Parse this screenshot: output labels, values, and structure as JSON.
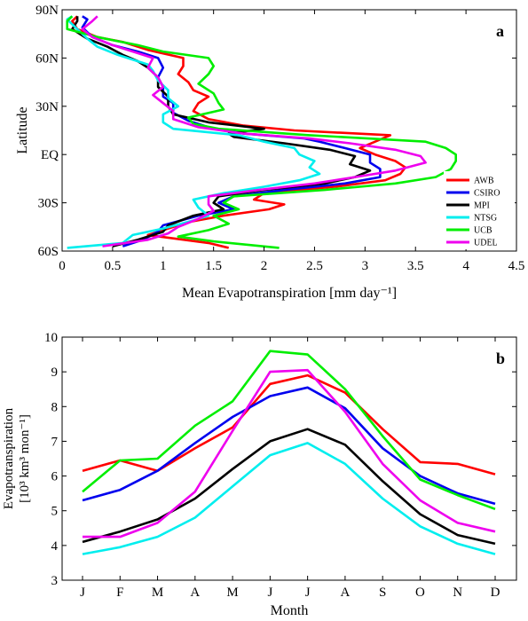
{
  "chart_data": [
    {
      "type": "line",
      "panel_label": "a",
      "xlabel": "Mean Evapotranspiration [mm day⁻¹]",
      "ylabel": "Latitude",
      "xlim": [
        0,
        4.5
      ],
      "ylim": [
        -60,
        90
      ],
      "xticks": [
        0,
        0.5,
        1,
        1.5,
        2,
        2.5,
        3,
        3.5,
        4,
        4.5
      ],
      "xtick_labels": [
        "0",
        "0.5",
        "1",
        "1.5",
        "2",
        "2.5",
        "3",
        "3.5",
        "4",
        "4.5"
      ],
      "yticks": [
        -60,
        -30,
        0,
        30,
        60,
        90
      ],
      "ytick_labels": [
        "60S",
        "30S",
        "EQ",
        "30N",
        "60N",
        "90N"
      ],
      "legend_position": "right",
      "series": [
        {
          "name": "AWB",
          "color": "#ff0000",
          "points": [
            [
              1.65,
              -58
            ],
            [
              1.45,
              -55
            ],
            [
              0.85,
              -50
            ],
            [
              1.05,
              -46
            ],
            [
              1.25,
              -42
            ],
            [
              1.6,
              -38
            ],
            [
              2.05,
              -34
            ],
            [
              2.2,
              -31
            ],
            [
              1.9,
              -28
            ],
            [
              2.0,
              -24
            ],
            [
              2.7,
              -20
            ],
            [
              3.2,
              -16
            ],
            [
              3.35,
              -12
            ],
            [
              3.4,
              -8
            ],
            [
              3.3,
              -4
            ],
            [
              3.1,
              0
            ],
            [
              2.95,
              4
            ],
            [
              3.1,
              8
            ],
            [
              3.25,
              12
            ],
            [
              2.3,
              15
            ],
            [
              1.8,
              18
            ],
            [
              1.45,
              22
            ],
            [
              1.3,
              27
            ],
            [
              1.35,
              32
            ],
            [
              1.45,
              36
            ],
            [
              1.3,
              40
            ],
            [
              1.25,
              45
            ],
            [
              1.15,
              50
            ],
            [
              1.2,
              55
            ],
            [
              1.2,
              60
            ],
            [
              0.85,
              65
            ],
            [
              0.6,
              70
            ],
            [
              0.35,
              73
            ],
            [
              0.15,
              78
            ],
            [
              0.1,
              83
            ],
            [
              0.15,
              86
            ]
          ]
        },
        {
          "name": "CSIRO",
          "color": "#0000ee",
          "points": [
            [
              0.6,
              -57
            ],
            [
              0.8,
              -53
            ],
            [
              0.95,
              -48
            ],
            [
              1.0,
              -44
            ],
            [
              1.35,
              -38
            ],
            [
              1.7,
              -34
            ],
            [
              1.55,
              -30
            ],
            [
              1.7,
              -26
            ],
            [
              2.2,
              -22
            ],
            [
              2.8,
              -18
            ],
            [
              3.15,
              -14
            ],
            [
              3.15,
              -9
            ],
            [
              3.05,
              -5
            ],
            [
              3.05,
              0
            ],
            [
              2.8,
              4
            ],
            [
              2.55,
              8
            ],
            [
              2.4,
              10
            ],
            [
              1.8,
              13
            ],
            [
              1.45,
              17
            ],
            [
              1.25,
              21
            ],
            [
              1.1,
              26
            ],
            [
              1.1,
              32
            ],
            [
              1.0,
              36
            ],
            [
              1.0,
              42
            ],
            [
              0.95,
              48
            ],
            [
              1.0,
              54
            ],
            [
              0.95,
              60
            ],
            [
              0.75,
              64
            ],
            [
              0.5,
              68
            ],
            [
              0.3,
              73
            ],
            [
              0.2,
              79
            ],
            [
              0.25,
              84
            ],
            [
              0.2,
              86
            ]
          ]
        },
        {
          "name": "MPI",
          "color": "#000000",
          "points": [
            [
              0.5,
              -57
            ],
            [
              0.75,
              -53
            ],
            [
              1.0,
              -48
            ],
            [
              1.05,
              -44
            ],
            [
              1.3,
              -38
            ],
            [
              1.6,
              -34
            ],
            [
              1.5,
              -30
            ],
            [
              1.55,
              -26
            ],
            [
              2.0,
              -22
            ],
            [
              2.6,
              -18
            ],
            [
              2.9,
              -14
            ],
            [
              3.05,
              -10
            ],
            [
              2.85,
              -6
            ],
            [
              2.9,
              -1
            ],
            [
              2.65,
              3
            ],
            [
              2.2,
              7
            ],
            [
              1.7,
              11
            ],
            [
              1.65,
              13
            ],
            [
              2.0,
              16
            ],
            [
              1.45,
              20
            ],
            [
              1.1,
              25
            ],
            [
              1.05,
              30
            ],
            [
              1.05,
              36
            ],
            [
              0.95,
              42
            ],
            [
              0.95,
              48
            ],
            [
              0.85,
              54
            ],
            [
              0.75,
              58
            ],
            [
              0.6,
              62
            ],
            [
              0.45,
              67
            ],
            [
              0.25,
              72
            ],
            [
              0.1,
              78
            ],
            [
              0.15,
              83
            ],
            [
              0.15,
              86
            ]
          ]
        },
        {
          "name": "NTSG",
          "color": "#00eeee",
          "points": [
            [
              0.05,
              -58
            ],
            [
              0.6,
              -55
            ],
            [
              0.7,
              -50
            ],
            [
              1.0,
              -46
            ],
            [
              1.3,
              -41
            ],
            [
              1.45,
              -38
            ],
            [
              1.35,
              -33
            ],
            [
              1.3,
              -28
            ],
            [
              1.6,
              -24
            ],
            [
              2.0,
              -20
            ],
            [
              2.35,
              -16
            ],
            [
              2.55,
              -12
            ],
            [
              2.45,
              -8
            ],
            [
              2.5,
              -4
            ],
            [
              2.35,
              0
            ],
            [
              2.3,
              4
            ],
            [
              2.0,
              8
            ],
            [
              1.75,
              12
            ],
            [
              1.1,
              16
            ],
            [
              1.0,
              20
            ],
            [
              1.0,
              25
            ],
            [
              1.15,
              30
            ],
            [
              1.05,
              35
            ],
            [
              1.05,
              40
            ],
            [
              0.95,
              46
            ],
            [
              0.9,
              52
            ],
            [
              0.85,
              56
            ],
            [
              0.55,
              62
            ],
            [
              0.35,
              67
            ],
            [
              0.25,
              72
            ],
            [
              0.15,
              78
            ],
            [
              0.05,
              84
            ],
            [
              0.1,
              86
            ]
          ]
        },
        {
          "name": "UCB",
          "color": "#00ee00",
          "points": [
            [
              2.15,
              -58
            ],
            [
              1.5,
              -54
            ],
            [
              1.15,
              -51
            ],
            [
              1.45,
              -47
            ],
            [
              1.65,
              -43
            ],
            [
              1.5,
              -38
            ],
            [
              1.75,
              -34
            ],
            [
              1.6,
              -30
            ],
            [
              1.7,
              -26
            ],
            [
              2.6,
              -22
            ],
            [
              3.3,
              -18
            ],
            [
              3.7,
              -14
            ],
            [
              3.85,
              -9
            ],
            [
              3.9,
              -4
            ],
            [
              3.9,
              0
            ],
            [
              3.8,
              4
            ],
            [
              3.6,
              8
            ],
            [
              2.45,
              12
            ],
            [
              1.55,
              16
            ],
            [
              1.3,
              19
            ],
            [
              1.25,
              23
            ],
            [
              1.6,
              28
            ],
            [
              1.55,
              32
            ],
            [
              1.5,
              38
            ],
            [
              1.35,
              44
            ],
            [
              1.45,
              50
            ],
            [
              1.5,
              55
            ],
            [
              1.45,
              60
            ],
            [
              1.0,
              64
            ],
            [
              0.75,
              68
            ],
            [
              0.35,
              73
            ],
            [
              0.05,
              78
            ],
            [
              0.05,
              83
            ],
            [
              0.1,
              86
            ]
          ]
        },
        {
          "name": "UDEL",
          "color": "#ee00ee",
          "points": [
            [
              0.4,
              -57
            ],
            [
              0.85,
              -53
            ],
            [
              1.05,
              -49
            ],
            [
              1.15,
              -45
            ],
            [
              1.35,
              -40
            ],
            [
              1.5,
              -35
            ],
            [
              1.45,
              -31
            ],
            [
              1.45,
              -26
            ],
            [
              1.95,
              -22
            ],
            [
              2.5,
              -18
            ],
            [
              2.9,
              -14
            ],
            [
              3.3,
              -10
            ],
            [
              3.6,
              -5
            ],
            [
              3.55,
              -1
            ],
            [
              3.3,
              3
            ],
            [
              2.85,
              7
            ],
            [
              2.45,
              10
            ],
            [
              1.8,
              13
            ],
            [
              1.35,
              17
            ],
            [
              1.1,
              22
            ],
            [
              1.1,
              27
            ],
            [
              1.0,
              32
            ],
            [
              0.9,
              37
            ],
            [
              1.0,
              42
            ],
            [
              0.95,
              48
            ],
            [
              0.85,
              54
            ],
            [
              0.9,
              60
            ],
            [
              0.7,
              64
            ],
            [
              0.5,
              68
            ],
            [
              0.3,
              73
            ],
            [
              0.2,
              78
            ],
            [
              0.3,
              83
            ],
            [
              0.35,
              86
            ]
          ]
        }
      ]
    },
    {
      "type": "line",
      "panel_label": "b",
      "xlabel": "Month",
      "ylabel_line1": "Evapotranspiration",
      "ylabel_line2": "[10³ km³ mon⁻¹]",
      "categories": [
        "J",
        "F",
        "M",
        "A",
        "M",
        "J",
        "J",
        "A",
        "S",
        "O",
        "N",
        "D"
      ],
      "ylim": [
        3,
        10
      ],
      "yticks": [
        3,
        4,
        5,
        6,
        7,
        8,
        9,
        10
      ],
      "ytick_labels": [
        "3",
        "4",
        "5",
        "6",
        "7",
        "8",
        "9",
        "10"
      ],
      "series": [
        {
          "name": "AWB",
          "color": "#ff0000",
          "values": [
            6.15,
            6.45,
            6.15,
            6.8,
            7.4,
            8.65,
            8.9,
            8.4,
            7.35,
            6.4,
            6.35,
            6.05
          ]
        },
        {
          "name": "CSIRO",
          "color": "#0000ee",
          "values": [
            5.3,
            5.6,
            6.15,
            6.95,
            7.7,
            8.3,
            8.55,
            7.95,
            6.8,
            6.0,
            5.5,
            5.2
          ]
        },
        {
          "name": "MPI",
          "color": "#000000",
          "values": [
            4.1,
            4.4,
            4.75,
            5.35,
            6.2,
            7.0,
            7.35,
            6.9,
            5.85,
            4.9,
            4.3,
            4.05
          ]
        },
        {
          "name": "NTSG",
          "color": "#00eeee",
          "values": [
            3.75,
            3.95,
            4.25,
            4.8,
            5.7,
            6.6,
            6.95,
            6.35,
            5.35,
            4.55,
            4.05,
            3.75
          ]
        },
        {
          "name": "UCB",
          "color": "#00ee00",
          "values": [
            5.55,
            6.45,
            6.5,
            7.45,
            8.15,
            9.6,
            9.5,
            8.5,
            7.15,
            5.9,
            5.45,
            5.05
          ]
        },
        {
          "name": "UDEL",
          "color": "#ee00ee",
          "values": [
            4.25,
            4.25,
            4.65,
            5.55,
            7.3,
            9.0,
            9.05,
            7.85,
            6.35,
            5.3,
            4.65,
            4.4
          ]
        }
      ]
    }
  ]
}
